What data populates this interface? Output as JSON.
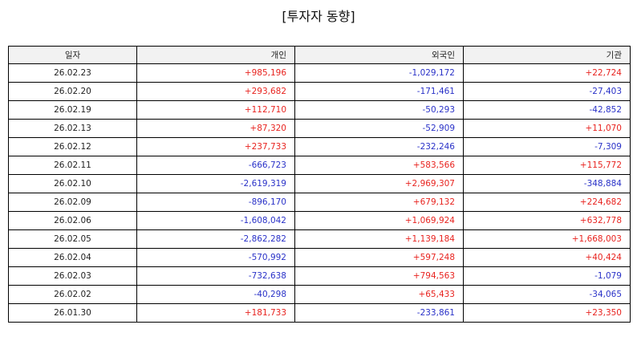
{
  "title": "[투자자 동향]",
  "columns": [
    "일자",
    "개인",
    "외국인",
    "기관"
  ],
  "colors": {
    "positive": "#e8231f",
    "negative": "#2a32c8"
  },
  "rows": [
    [
      "26.02.23",
      "+985,196",
      "-1,029,172",
      "+22,724"
    ],
    [
      "26.02.20",
      "+293,682",
      "-171,461",
      "-27,403"
    ],
    [
      "26.02.19",
      "+112,710",
      "-50,293",
      "-42,852"
    ],
    [
      "26.02.13",
      "+87,320",
      "-52,909",
      "+11,070"
    ],
    [
      "26.02.12",
      "+237,733",
      "-232,246",
      "-7,309"
    ],
    [
      "26.02.11",
      "-666,723",
      "+583,566",
      "+115,772"
    ],
    [
      "26.02.10",
      "-2,619,319",
      "+2,969,307",
      "-348,884"
    ],
    [
      "26.02.09",
      "-896,170",
      "+679,132",
      "+224,682"
    ],
    [
      "26.02.06",
      "-1,608,042",
      "+1,069,924",
      "+632,778"
    ],
    [
      "26.02.05",
      "-2,862,282",
      "+1,139,184",
      "+1,668,003"
    ],
    [
      "26.02.04",
      "-570,992",
      "+597,248",
      "+40,424"
    ],
    [
      "26.02.03",
      "-732,638",
      "+794,563",
      "-1,079"
    ],
    [
      "26.02.02",
      "-40,298",
      "+65,433",
      "-34,065"
    ],
    [
      "26.01.30",
      "+181,733",
      "-233,861",
      "+23,350"
    ]
  ]
}
